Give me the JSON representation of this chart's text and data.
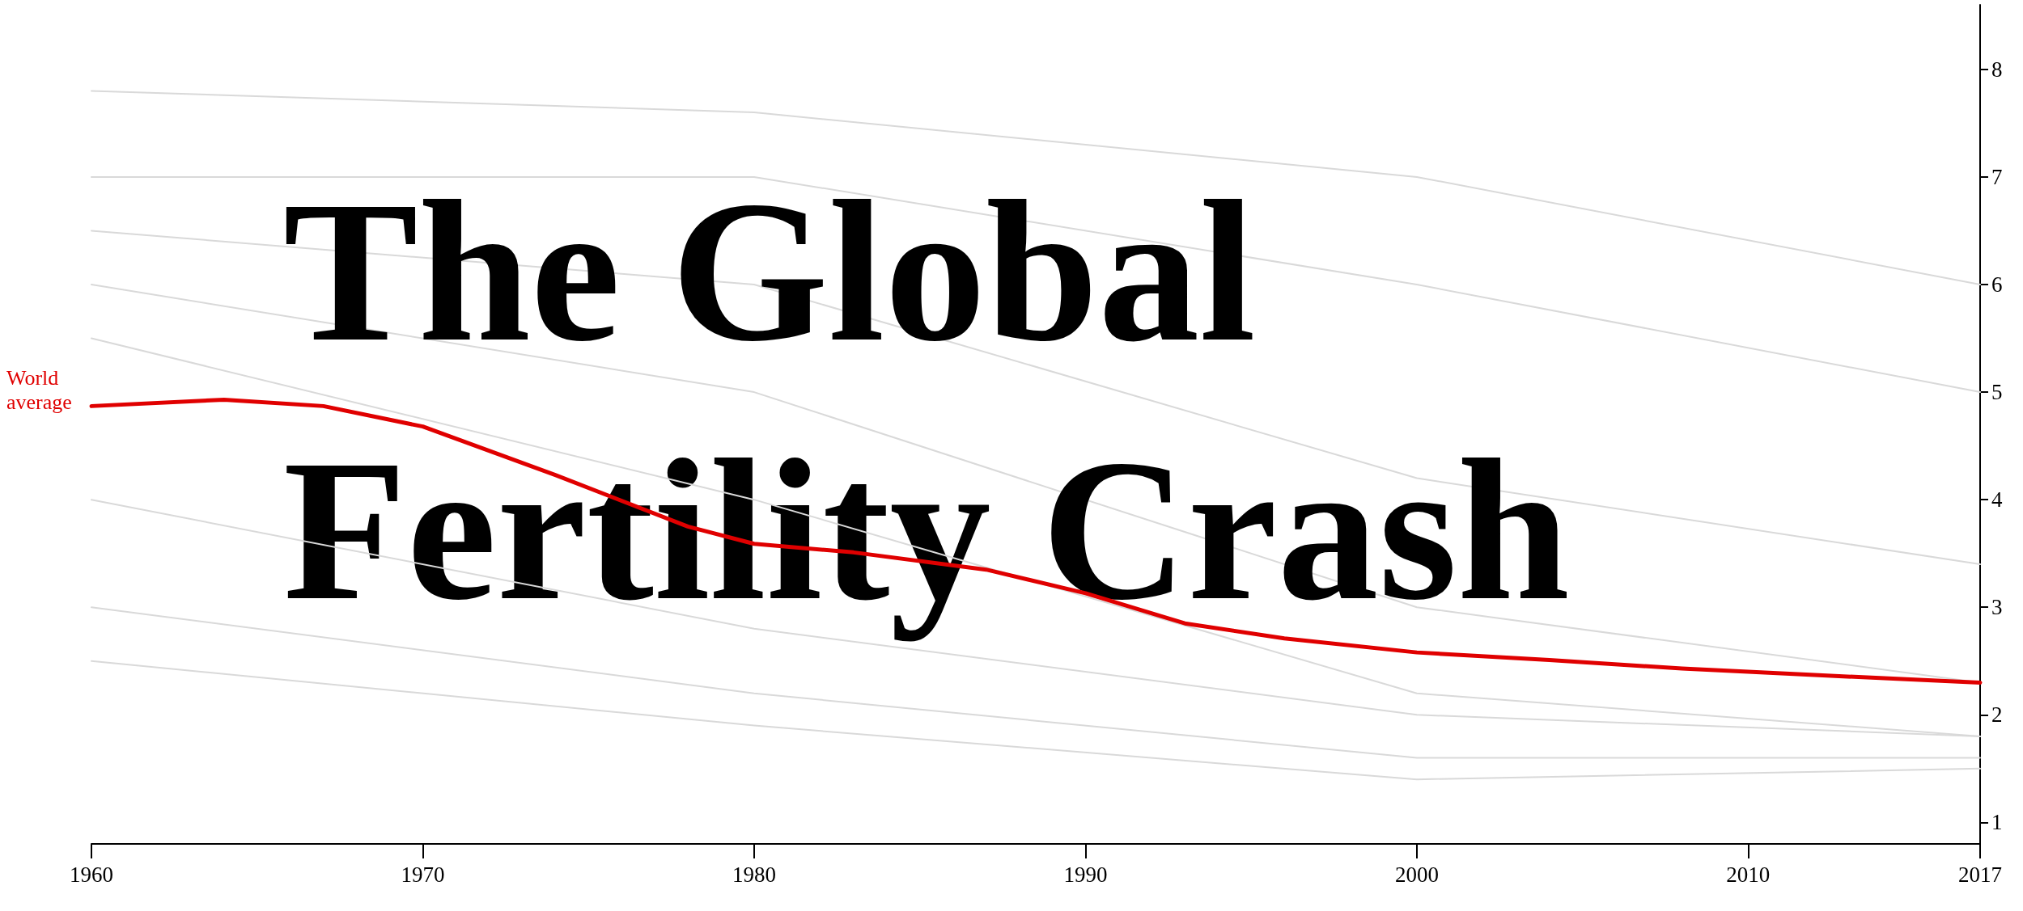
{
  "chart_data": {
    "type": "line",
    "title": "The Global Fertility Crash",
    "xlim": [
      1960,
      2017
    ],
    "xticks": [
      1960,
      1970,
      1980,
      1990,
      2000,
      2010,
      2017
    ],
    "ylim": [
      0.8,
      8.6
    ],
    "yticks": [
      1,
      2,
      3,
      4,
      5,
      6,
      7,
      8
    ],
    "grid": false,
    "marker": "none",
    "line_style": "solid",
    "annotations": [
      {
        "text": "World average",
        "x": 1960,
        "y": 4.87
      }
    ],
    "series": [
      {
        "color": "#d9d9d9",
        "x": [
          1960,
          1980,
          2000,
          2017
        ],
        "values": [
          7.8,
          7.6,
          7.0,
          6.0
        ]
      },
      {
        "color": "#d9d9d9",
        "x": [
          1960,
          1980,
          2000,
          2017
        ],
        "values": [
          7.0,
          7.0,
          6.0,
          5.0
        ]
      },
      {
        "color": "#d9d9d9",
        "x": [
          1960,
          1980,
          2000,
          2017
        ],
        "values": [
          6.5,
          6.0,
          4.2,
          3.4
        ]
      },
      {
        "color": "#d9d9d9",
        "x": [
          1960,
          1980,
          2000,
          2017
        ],
        "values": [
          6.0,
          5.0,
          3.0,
          2.3
        ]
      },
      {
        "color": "#d9d9d9",
        "x": [
          1960,
          1980,
          2000,
          2017
        ],
        "values": [
          5.5,
          4.0,
          2.2,
          1.8
        ]
      },
      {
        "color": "#d9d9d9",
        "x": [
          1960,
          1980,
          2000,
          2017
        ],
        "values": [
          4.0,
          2.8,
          2.0,
          1.8
        ]
      },
      {
        "color": "#d9d9d9",
        "x": [
          1960,
          1980,
          2000,
          2017
        ],
        "values": [
          3.0,
          2.2,
          1.6,
          1.6
        ]
      },
      {
        "color": "#d9d9d9",
        "x": [
          1960,
          1980,
          2000,
          2017
        ],
        "values": [
          2.5,
          1.9,
          1.4,
          1.5
        ]
      },
      {
        "color": "#e00000",
        "x": [
          1960,
          1964,
          1967,
          1970,
          1974,
          1978,
          1980,
          1983,
          1987,
          1990,
          1993,
          1996,
          2000,
          2004,
          2008,
          2012,
          2017
        ],
        "values": [
          4.87,
          4.93,
          4.87,
          4.68,
          4.23,
          3.75,
          3.59,
          3.51,
          3.35,
          3.13,
          2.85,
          2.71,
          2.58,
          2.51,
          2.43,
          2.37,
          2.3
        ]
      }
    ]
  }
}
